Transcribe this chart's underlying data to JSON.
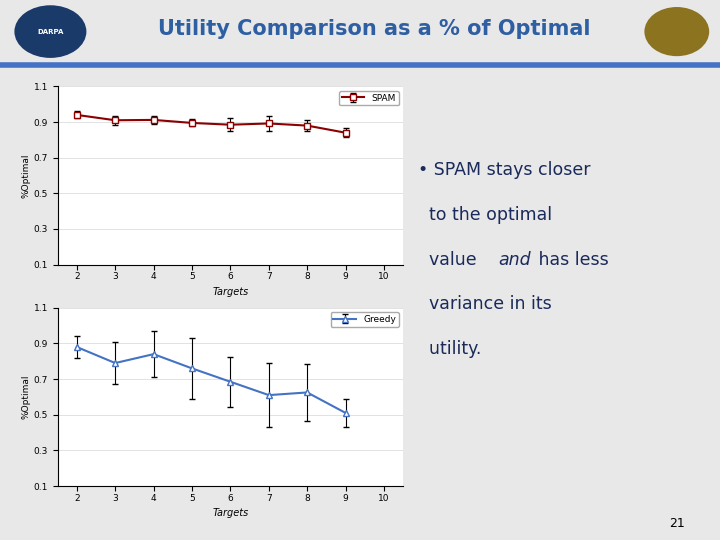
{
  "title": "Utility Comparison as a % of Optimal",
  "title_color": "#2E5FA3",
  "bg_color": "#E8E8E8",
  "plot_bg": "#FFFFFF",
  "spam_x": [
    2,
    3,
    4,
    5,
    6,
    7,
    8,
    9
  ],
  "spam_y": [
    0.94,
    0.91,
    0.912,
    0.895,
    0.885,
    0.892,
    0.88,
    0.84
  ],
  "spam_yerr": [
    0.02,
    0.025,
    0.022,
    0.02,
    0.038,
    0.04,
    0.03,
    0.025
  ],
  "spam_color": "#8B0000",
  "spam_label": "SPAM",
  "greedy_x": [
    2,
    3,
    4,
    5,
    6,
    7,
    8,
    9
  ],
  "greedy_y": [
    0.88,
    0.79,
    0.84,
    0.76,
    0.685,
    0.61,
    0.625,
    0.51
  ],
  "greedy_yerr": [
    0.06,
    0.12,
    0.13,
    0.17,
    0.14,
    0.18,
    0.16,
    0.08
  ],
  "greedy_color": "#4472C4",
  "greedy_label": "Greedy",
  "xlabel": "Targets",
  "ylabel": "%Optimal",
  "ylim": [
    0.1,
    1.1
  ],
  "xlim": [
    1.5,
    10.5
  ],
  "xticks": [
    2,
    3,
    4,
    5,
    6,
    7,
    8,
    9,
    10
  ],
  "yticks": [
    0.1,
    0.3,
    0.5,
    0.7,
    0.9,
    1.1
  ],
  "bullet_line1": "• SPAM stays closer",
  "bullet_line2": "  to the optimal",
  "bullet_line3": "  value ",
  "bullet_italic": "and",
  "bullet_line4": " has less",
  "bullet_line5": "  variance in its",
  "bullet_line6": "  utility.",
  "slide_number": "21",
  "header_bg": "#F5F5F5",
  "stripe_color": "#4472C4"
}
